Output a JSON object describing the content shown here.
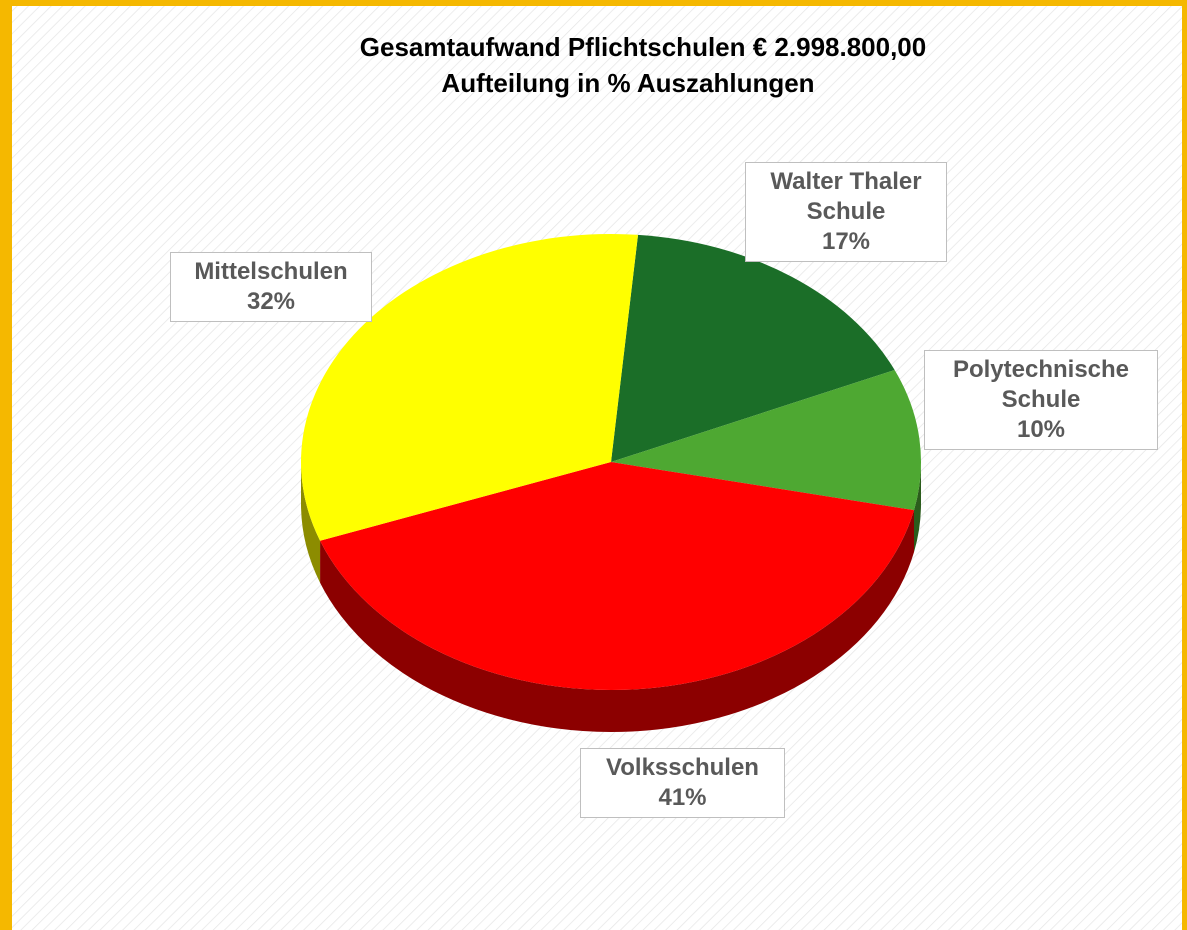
{
  "chart_data": {
    "type": "pie",
    "title": "Gesamtaufwand Pflichtschulen € 2.998.800,00",
    "subtitle": "Aufteilung in % Auszahlungen",
    "categories": [
      "Walter Thaler Schule",
      "Polytechnische Schule",
      "Volksschulen",
      "Mittelschulen"
    ],
    "values": [
      17,
      10,
      41,
      32
    ],
    "value_labels": [
      "17%",
      "10%",
      "41%",
      "32%"
    ],
    "colors": [
      "#1b6e28",
      "#4ea832",
      "#ff0000",
      "#ffff00"
    ]
  }
}
